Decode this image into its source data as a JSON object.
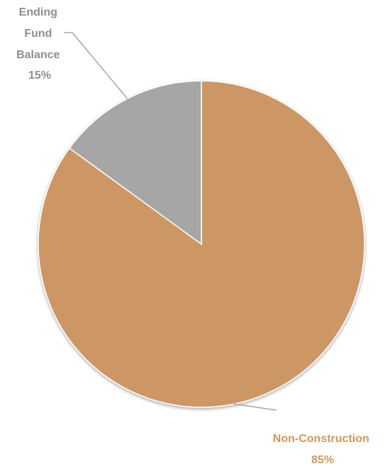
{
  "chart_data": {
    "type": "pie",
    "title": "",
    "slices": [
      {
        "name_lines": [
          "Non-Construction"
        ],
        "percent_label": "85%",
        "value": 85,
        "color": "#CD9765",
        "label_color": "#D2975F"
      },
      {
        "name_lines": [
          "Ending",
          "Fund",
          "Balance"
        ],
        "percent_label": "15%",
        "value": 15,
        "color": "#A6A6A6",
        "label_color": "#8E8E8E"
      }
    ],
    "start_angle": "12 o'clock",
    "direction": "clockwise",
    "legend": "none",
    "leader_line_color": "#A6A6A6"
  }
}
